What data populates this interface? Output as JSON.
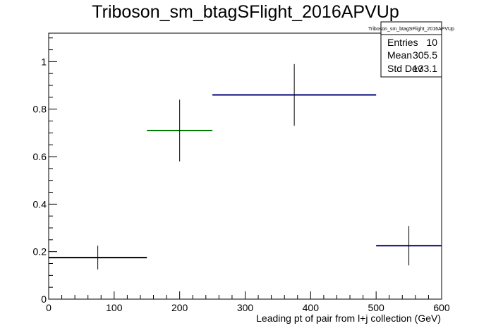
{
  "chart_data": {
    "type": "histogram",
    "title": "Triboson_sm_btagSFlight_2016APVUp",
    "xlabel": "Leading pt of pair from l+j collection (GeV)",
    "ylabel": "",
    "xlim": [
      0,
      600
    ],
    "ylim": [
      0,
      1.12
    ],
    "x_ticks": [
      0,
      100,
      200,
      300,
      400,
      500,
      600
    ],
    "y_ticks": [
      0,
      0.2,
      0.4,
      0.6,
      0.8,
      1
    ],
    "x_tick_labels": [
      "0",
      "100",
      "200",
      "300",
      "400",
      "500",
      "600"
    ],
    "y_tick_labels": [
      "0",
      "0.2",
      "0.4",
      "0.6",
      "0.8",
      "1"
    ],
    "grid": false,
    "bins": [
      {
        "x_low": 0,
        "x_high": 150,
        "x_center": 75,
        "value": 0.175,
        "err": 0.05,
        "color": "#000000"
      },
      {
        "x_low": 150,
        "x_high": 250,
        "x_center": 200,
        "value": 0.71,
        "err": 0.13,
        "color": "#007a00"
      },
      {
        "x_low": 250,
        "x_high": 500,
        "x_center": 375,
        "value": 0.86,
        "err": 0.13,
        "color": "#00007a"
      },
      {
        "x_low": 500,
        "x_high": 600,
        "x_center": 550,
        "value": 0.225,
        "err": 0.083,
        "color": "#00007a"
      }
    ],
    "stats": {
      "name": "Triboson_sm_btagSFlight_2016APVUp",
      "rows": [
        {
          "label": "Entries",
          "value": "10"
        },
        {
          "label": "Mean",
          "value": "305.5"
        },
        {
          "label": "Std Dev",
          "value": "133.1"
        }
      ]
    }
  }
}
